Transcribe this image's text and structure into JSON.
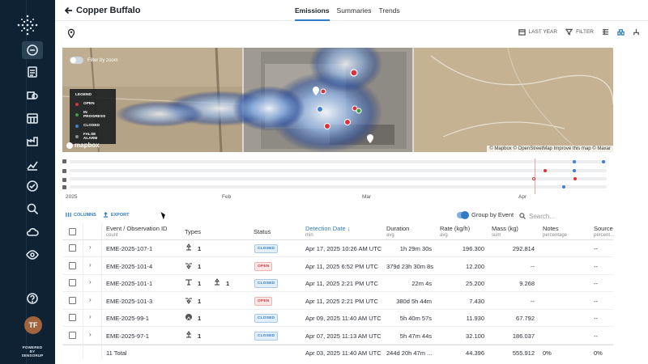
{
  "header": {
    "back_label": "Copper Buffalo",
    "tabs": [
      {
        "label": "Emissions",
        "active": true
      },
      {
        "label": "Summaries",
        "active": false
      },
      {
        "label": "Trends",
        "active": false
      }
    ]
  },
  "toolbar": {
    "date_range_label": "LAST YEAR",
    "filter_label": "FILTER"
  },
  "map": {
    "toggle_label": "Filter by zoom",
    "legend": {
      "title": "LEGEND",
      "items": [
        {
          "label": "OPEN",
          "color": "#d8343a"
        },
        {
          "label": "IN PROGRESS",
          "color": "#3e9b46"
        },
        {
          "label": "CLOSED",
          "color": "#3b82d6"
        },
        {
          "label": "FALSE ALARM",
          "color": "#8a8f95"
        }
      ]
    },
    "logo_text": "mapbox",
    "attribution": "© Mapbox © OpenStreetMap Improve this map © Maxar"
  },
  "timeline": {
    "axis_labels": [
      "2025",
      "Feb",
      "Mar",
      "Apr"
    ]
  },
  "table_controls": {
    "columns_label": "COLUMNS",
    "export_label": "EXPORT",
    "group_label": "Group by Event",
    "search_placeholder": "Search..."
  },
  "table": {
    "columns": [
      {
        "label": "Event / Observation ID",
        "sub": "count"
      },
      {
        "label": "Types",
        "sub": ""
      },
      {
        "label": "Status",
        "sub": ""
      },
      {
        "label": "Detection Date",
        "sub": "min"
      },
      {
        "label": "Duration",
        "sub": "avg"
      },
      {
        "label": "Rate (kg/h)",
        "sub": "avg"
      },
      {
        "label": "Mass (kg)",
        "sub": "sum"
      },
      {
        "label": "Notes",
        "sub": "percentage"
      },
      {
        "label": "Source",
        "sub": "percent..."
      }
    ],
    "rows": [
      {
        "id": "EME-2025-107-1",
        "types": [
          {
            "icon": "satellite-icon",
            "count": "1"
          }
        ],
        "status": "CLOSED",
        "date": "Apr 17, 2025 10:26 AM UTC",
        "duration": "1h 29m 30s",
        "rate": "196.300",
        "mass": "292.814",
        "notes": "",
        "source": "--"
      },
      {
        "id": "EME-2025-101-4",
        "types": [
          {
            "icon": "drone-icon",
            "count": "1"
          }
        ],
        "status": "OPEN",
        "date": "Apr 11, 2025 6:52 PM UTC",
        "duration": "379d 23h 30m 8s",
        "rate": "12.200",
        "mass": "--",
        "notes": "",
        "source": "--"
      },
      {
        "id": "EME-2025-101-1",
        "types": [
          {
            "icon": "sensor-icon",
            "count": "1"
          },
          {
            "icon": "satellite-icon",
            "count": "1"
          }
        ],
        "status": "CLOSED",
        "date": "Apr 11, 2025 2:21 PM UTC",
        "duration": "22m 4s",
        "rate": "25.200",
        "mass": "9.268",
        "notes": "",
        "source": "--"
      },
      {
        "id": "EME-2025-101-3",
        "types": [
          {
            "icon": "drone-icon",
            "count": "1"
          }
        ],
        "status": "OPEN",
        "date": "Apr 11, 2025 2:21 PM UTC",
        "duration": "380d 5h 44m",
        "rate": "7.430",
        "mass": "--",
        "notes": "",
        "source": "--"
      },
      {
        "id": "EME-2025-99-1",
        "types": [
          {
            "icon": "vehicle-icon",
            "count": "1"
          }
        ],
        "status": "CLOSED",
        "date": "Apr 09, 2025 11:40 AM UTC",
        "duration": "5h 40m 57s",
        "rate": "11.930",
        "mass": "67.792",
        "notes": "",
        "source": "--"
      },
      {
        "id": "EME-2025-97-1",
        "types": [
          {
            "icon": "satellite-icon",
            "count": "1"
          }
        ],
        "status": "CLOSED",
        "date": "Apr 07, 2025 11:13 AM UTC",
        "duration": "5h 47m 44s",
        "rate": "32.100",
        "mass": "186.037",
        "notes": "",
        "source": "--"
      }
    ],
    "total": {
      "label": "11 Total",
      "date": "Apr 03, 2025 11:40 AM UTC",
      "duration": "244d 20h 47m ...",
      "rate": "44.396",
      "mass": "555.912",
      "notes": "0%",
      "source": "0%"
    }
  },
  "user": {
    "initials": "TF"
  },
  "footer": {
    "powered_line1": "POWERED BY",
    "powered_line2": "SENSORUP"
  }
}
